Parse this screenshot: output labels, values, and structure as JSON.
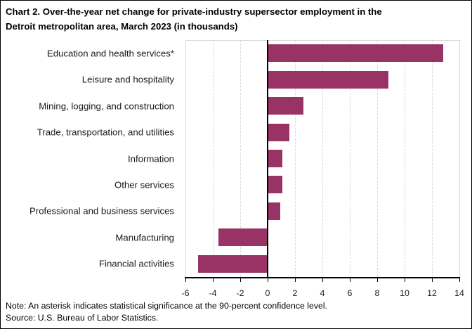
{
  "title": {
    "line1": "Chart 2. Over-the-year net change for private-industry supersector employment in the",
    "line2": "Detroit metropolitan area, March 2023 (in thousands)"
  },
  "chart_data": {
    "type": "bar",
    "orientation": "horizontal",
    "title": "Chart 2. Over-the-year net change for private-industry supersector employment in the Detroit metropolitan area, March 2023 (in thousands)",
    "unit": "thousands",
    "categories": [
      "Education and health services*",
      "Leisure and hospitality",
      "Mining, logging, and construction",
      "Trade, transportation, and utilities",
      "Information",
      "Other services",
      "Professional and business services",
      "Manufacturing",
      "Financial activities"
    ],
    "values": [
      12.8,
      8.8,
      2.6,
      1.6,
      1.1,
      1.1,
      0.9,
      -3.6,
      -5.1
    ],
    "xlim": [
      -6,
      14
    ],
    "xticks": [
      -6,
      -4,
      -2,
      0,
      2,
      4,
      6,
      8,
      10,
      12,
      14
    ],
    "bar_color": "#993366",
    "gridline_color": "#d9d9d9",
    "axis_color": "#000000",
    "grid": "vertical-dashed",
    "legend": "none"
  },
  "footer": {
    "note": "Note: An asterisk indicates statistical significance at the 90-percent confidence level.",
    "source": "Source: U.S. Bureau of Labor Statistics."
  }
}
